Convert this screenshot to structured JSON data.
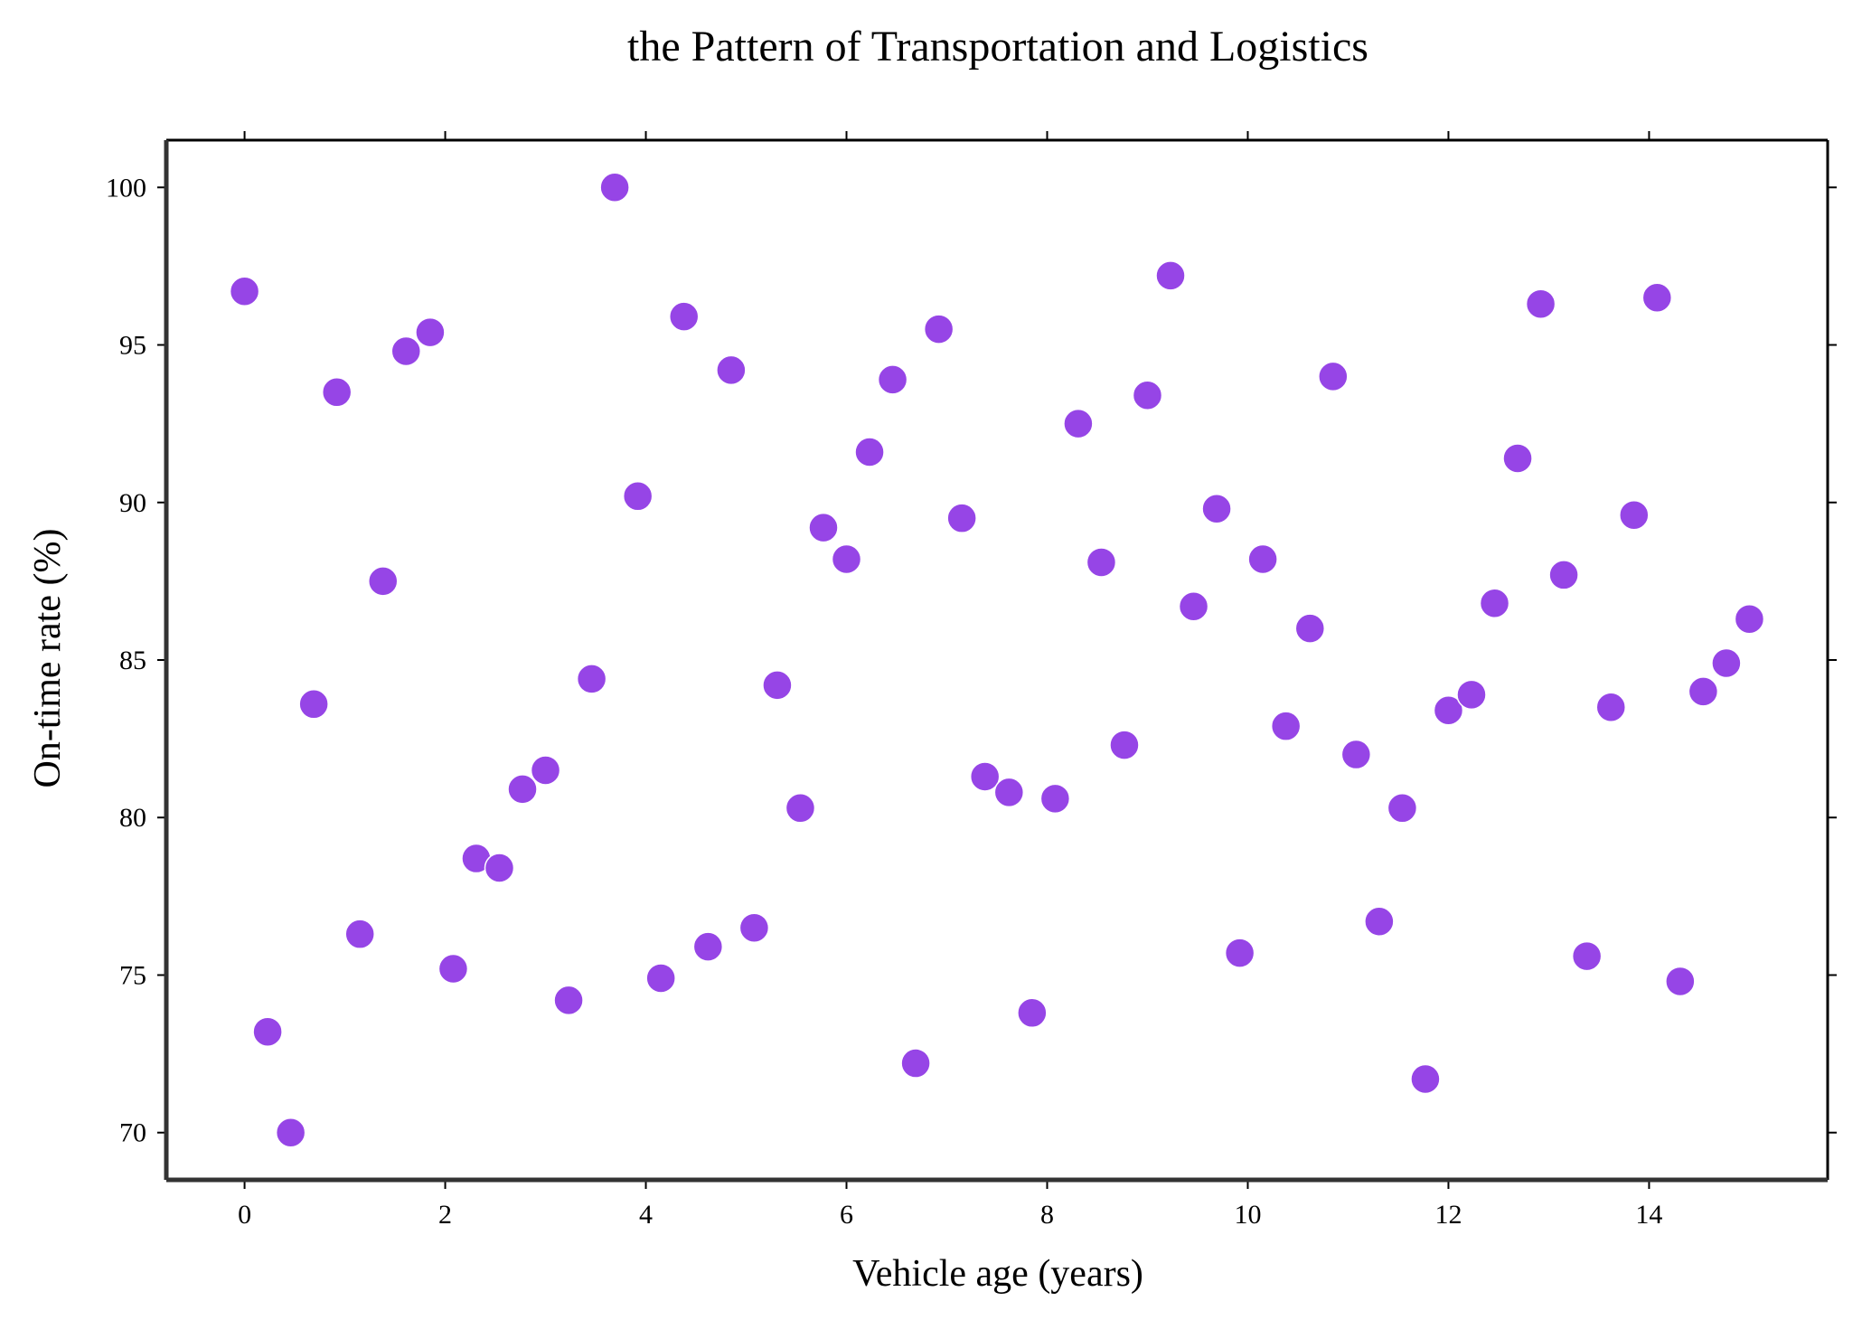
{
  "chart_data": {
    "type": "scatter",
    "title": "the Pattern of Transportation and Logistics",
    "xlabel": "Vehicle age (years)",
    "ylabel": "On-time rate (%)",
    "xlim": [
      -0.78,
      15.78
    ],
    "ylim": [
      68.5,
      101.5
    ],
    "xticks": [
      0,
      2,
      4,
      6,
      8,
      10,
      12,
      14
    ],
    "yticks": [
      70,
      75,
      80,
      85,
      90,
      95,
      100
    ],
    "grid": false,
    "legend": "none",
    "marker_color": "#9645E6",
    "marker_edge_color": "#ffffff",
    "series": [
      {
        "x": [
          0.0,
          0.23,
          0.46,
          0.69,
          0.92,
          1.15,
          1.38,
          1.61,
          1.85,
          2.08,
          2.31,
          2.54,
          2.77,
          3.0,
          3.23,
          3.46,
          3.69,
          3.92,
          4.15,
          4.38,
          4.62,
          4.85,
          5.08,
          5.31,
          5.54,
          5.77,
          6.0,
          6.23,
          6.46,
          6.69,
          6.92,
          7.15,
          7.38,
          7.62,
          7.85,
          8.08,
          8.31,
          8.54,
          8.77,
          9.0,
          9.23,
          9.46,
          9.69,
          9.92,
          10.15,
          10.38,
          10.62,
          10.85,
          11.08,
          11.31,
          11.54,
          11.77,
          12.0,
          12.23,
          12.46,
          12.69,
          12.92,
          13.15,
          13.38,
          13.62,
          13.85,
          14.08,
          14.31,
          14.54,
          14.77,
          15.0
        ],
        "y": [
          96.7,
          73.2,
          70.0,
          83.6,
          93.5,
          76.3,
          87.5,
          94.8,
          95.4,
          75.2,
          78.7,
          78.4,
          80.9,
          81.5,
          74.2,
          84.4,
          100.0,
          90.2,
          74.9,
          95.9,
          75.9,
          94.2,
          76.5,
          84.2,
          80.3,
          89.2,
          88.2,
          91.6,
          93.9,
          72.2,
          95.5,
          89.5,
          81.3,
          80.8,
          73.8,
          80.6,
          92.5,
          88.1,
          82.3,
          93.4,
          97.2,
          86.7,
          89.8,
          75.7,
          88.2,
          82.9,
          86.0,
          94.0,
          82.0,
          76.7,
          80.3,
          71.7,
          83.4,
          83.9,
          86.8,
          91.4,
          96.3,
          87.7,
          75.6,
          83.5,
          89.6,
          96.5,
          74.8,
          84.0,
          84.9,
          86.3
        ]
      }
    ]
  }
}
